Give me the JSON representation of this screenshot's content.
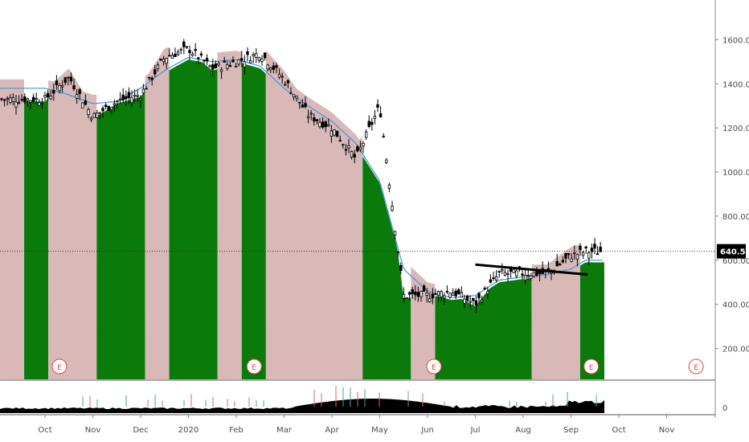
{
  "chart_data": {
    "type": "candlestick",
    "price_axis": {
      "ticks": [
        "200.00",
        "400.00",
        "600.00",
        "800.00",
        "1000.00",
        "1200.00",
        "1400.00",
        "1600.00"
      ],
      "values": [
        200,
        400,
        600,
        800,
        1000,
        1200,
        1400,
        1600
      ],
      "range": [
        60,
        1780
      ]
    },
    "volume_axis": {
      "ticks": [
        "0"
      ],
      "values": [
        0
      ]
    },
    "x_axis": {
      "labels": [
        "Oct",
        "Nov",
        "Dec",
        "2020",
        "Feb",
        "Mar",
        "Apr",
        "May",
        "Jun",
        "Jul",
        "Aug",
        "Sep",
        "Oct",
        "Nov"
      ]
    },
    "last_price": {
      "label": "640.55",
      "value": 640.55
    },
    "earnings_marker_label": "E",
    "earnings_markers": [
      0.03,
      0.29,
      0.53,
      0.74,
      0.88
    ],
    "shade_green_value_fraction": true,
    "regimes": [
      {
        "state": "pink",
        "from": 0,
        "to": 1
      },
      {
        "state": "green",
        "from": 1,
        "to": 2
      },
      {
        "state": "pink",
        "from": 2,
        "to": 4
      },
      {
        "state": "green",
        "from": 4,
        "to": 6
      },
      {
        "state": "pink",
        "from": 6,
        "to": 7
      },
      {
        "state": "green",
        "from": 7,
        "to": 9
      },
      {
        "state": "pink",
        "from": 9,
        "to": 10
      },
      {
        "state": "green",
        "from": 10,
        "to": 11
      },
      {
        "state": "pink",
        "from": 11,
        "to": 15
      },
      {
        "state": "green",
        "from": 15,
        "to": 17
      },
      {
        "state": "pink",
        "from": 17,
        "to": 18
      },
      {
        "state": "green",
        "from": 18,
        "to": 22
      },
      {
        "state": "pink",
        "from": 22,
        "to": 24
      },
      {
        "state": "green",
        "from": 24,
        "to": 25
      }
    ],
    "colors": {
      "green_zone": "#0a7a0a",
      "pink_zone": "#d9b8b8",
      "ma_line": "#3a9ad9",
      "candle": "#000000",
      "trendline": "#000000",
      "price_tag": "#000000",
      "volume": "#000000",
      "volume_bar_up": "#4aa3a3",
      "volume_bar_down": "#e06060",
      "earnings": "#e04848"
    },
    "trendline": {
      "from": {
        "month_index": 9.0,
        "value": 580
      },
      "to": {
        "month_index": 11.35,
        "value": 535
      }
    },
    "series": [
      {
        "name": "price",
        "x": [
          0,
          0.5,
          1,
          1.5,
          2,
          2.5,
          3,
          3.5,
          4,
          4.5,
          5,
          5.5,
          6,
          6.5,
          7,
          7.5,
          8,
          8.5,
          9,
          9.5,
          10,
          10.5,
          11,
          11.3
        ],
        "close": [
          1330,
          1430,
          1250,
          1320,
          1350,
          1520,
          1560,
          1470,
          1500,
          1540,
          1420,
          1260,
          1200,
          1060,
          1300,
          440,
          440,
          460,
          400,
          540,
          540,
          540,
          620,
          640
        ]
      },
      {
        "name": "ma",
        "x": [
          0,
          0.5,
          1,
          1.5,
          2,
          2.5,
          3,
          3.5,
          4,
          4.5,
          5,
          5.5,
          6,
          6.5,
          7,
          7.5,
          8,
          8.5,
          9,
          9.5,
          10,
          10.5,
          11,
          11.3
        ],
        "values": [
          1380,
          1350,
          1310,
          1320,
          1380,
          1460,
          1520,
          1500,
          1510,
          1480,
          1380,
          1300,
          1230,
          1130,
          960,
          560,
          460,
          430,
          440,
          510,
          525,
          535,
          560,
          600
        ]
      }
    ]
  }
}
